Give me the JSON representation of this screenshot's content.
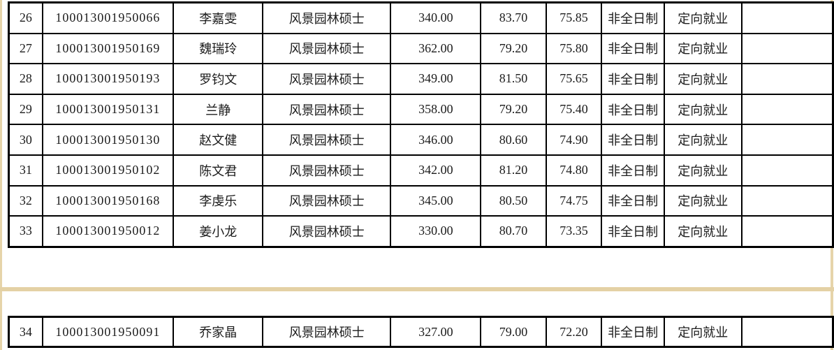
{
  "page": {
    "background_color": "#ffffff",
    "page_edge_color": "#e6d4a9",
    "table_border_color": "#000000",
    "text_color": "#1c1c1c"
  },
  "table": {
    "column_keys": [
      "no",
      "candidate_id",
      "name",
      "degree_program",
      "score_1",
      "score_2",
      "score_3",
      "study_mode",
      "employment_type",
      "note"
    ],
    "rows_page1": [
      {
        "no": "26",
        "candidate_id": "100013001950066",
        "name": "李嘉雯",
        "degree_program": "风景园林硕士",
        "score_1": "340.00",
        "score_2": "83.70",
        "score_3": "75.85",
        "study_mode": "非全日制",
        "employment_type": "定向就业",
        "note": ""
      },
      {
        "no": "27",
        "candidate_id": "100013001950169",
        "name": "魏瑞玲",
        "degree_program": "风景园林硕士",
        "score_1": "362.00",
        "score_2": "79.20",
        "score_3": "75.80",
        "study_mode": "非全日制",
        "employment_type": "定向就业",
        "note": ""
      },
      {
        "no": "28",
        "candidate_id": "100013001950193",
        "name": "罗钧文",
        "degree_program": "风景园林硕士",
        "score_1": "349.00",
        "score_2": "81.50",
        "score_3": "75.65",
        "study_mode": "非全日制",
        "employment_type": "定向就业",
        "note": ""
      },
      {
        "no": "29",
        "candidate_id": "100013001950131",
        "name": "兰静",
        "degree_program": "风景园林硕士",
        "score_1": "358.00",
        "score_2": "79.20",
        "score_3": "75.40",
        "study_mode": "非全日制",
        "employment_type": "定向就业",
        "note": ""
      },
      {
        "no": "30",
        "candidate_id": "100013001950130",
        "name": "赵文健",
        "degree_program": "风景园林硕士",
        "score_1": "346.00",
        "score_2": "80.60",
        "score_3": "74.90",
        "study_mode": "非全日制",
        "employment_type": "定向就业",
        "note": ""
      },
      {
        "no": "31",
        "candidate_id": "100013001950102",
        "name": "陈文君",
        "degree_program": "风景园林硕士",
        "score_1": "342.00",
        "score_2": "81.20",
        "score_3": "74.80",
        "study_mode": "非全日制",
        "employment_type": "定向就业",
        "note": ""
      },
      {
        "no": "32",
        "candidate_id": "100013001950168",
        "name": "李虔乐",
        "degree_program": "风景园林硕士",
        "score_1": "345.00",
        "score_2": "80.50",
        "score_3": "74.75",
        "study_mode": "非全日制",
        "employment_type": "定向就业",
        "note": ""
      },
      {
        "no": "33",
        "candidate_id": "100013001950012",
        "name": "姜小龙",
        "degree_program": "风景园林硕士",
        "score_1": "330.00",
        "score_2": "80.70",
        "score_3": "73.35",
        "study_mode": "非全日制",
        "employment_type": "定向就业",
        "note": ""
      }
    ],
    "rows_page2": [
      {
        "no": "34",
        "candidate_id": "100013001950091",
        "name": "乔家晶",
        "degree_program": "风景园林硕士",
        "score_1": "327.00",
        "score_2": "79.00",
        "score_3": "72.20",
        "study_mode": "非全日制",
        "employment_type": "定向就业",
        "note": ""
      }
    ]
  }
}
